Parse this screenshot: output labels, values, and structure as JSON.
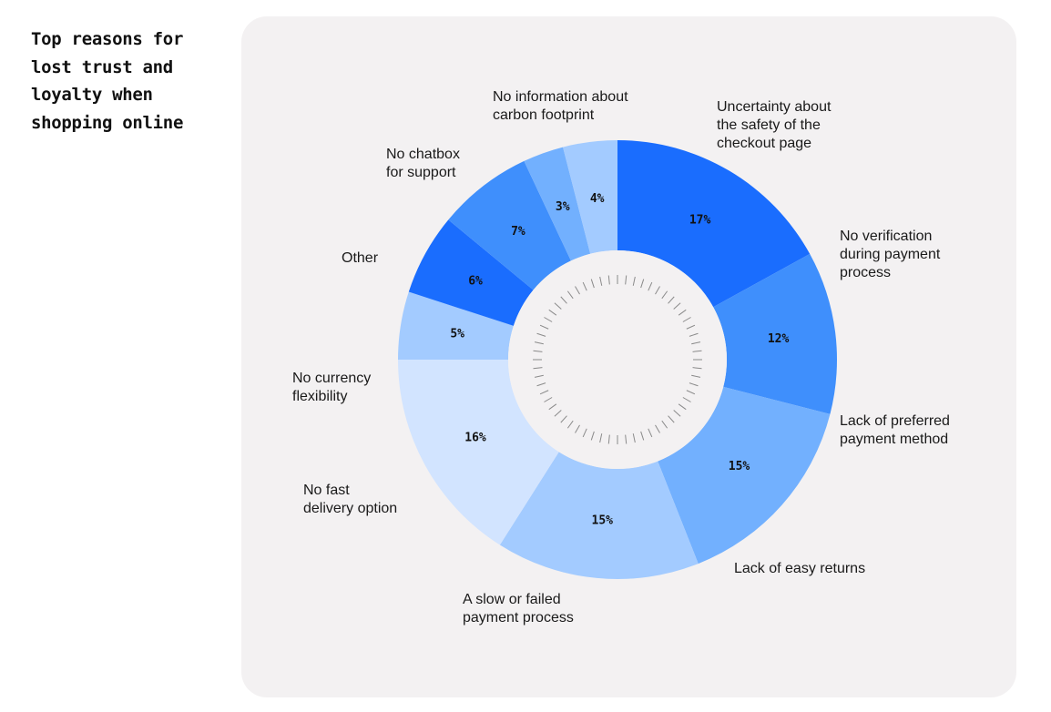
{
  "chart_data": {
    "type": "pie",
    "variant": "donut",
    "title": "Top reasons for lost trust and loyalty when shopping online",
    "categories": [
      "Uncertainty about the safety of the checkout page",
      "No verification during payment process",
      "Lack of preferred payment method",
      "Lack of easy returns",
      "A slow or failed payment process",
      "No fast delivery option",
      "No currency flexibility",
      "Other",
      "No chatbox for support",
      "No information about carbon footprint"
    ],
    "display_labels": [
      "Uncertainty about\nthe safety of the\ncheckout page",
      "No verification\nduring payment\nprocess",
      "Lack of preferred\npayment method",
      "Lack of easy returns",
      "A slow or failed\npayment process",
      "No fast\ndelivery option",
      "No currency\nflexibility",
      "Other",
      "No chatbox\nfor support",
      "No information about\ncarbon footprint"
    ],
    "values": [
      17,
      12,
      15,
      15,
      16,
      5,
      6,
      7,
      3,
      4
    ],
    "value_labels": [
      "17%",
      "12%",
      "15%",
      "15%",
      "16%",
      "5%",
      "6%",
      "7%",
      "3%",
      "4%"
    ],
    "colors": [
      "#1a6dfe",
      "#3f8ffc",
      "#72b0fe",
      "#a3cbff",
      "#d2e4ff",
      "#a3cbff",
      "#1a6dfe",
      "#3f8ffc",
      "#72b0fe",
      "#a3cbff"
    ],
    "start": "12 o'clock",
    "direction": "clockwise"
  }
}
